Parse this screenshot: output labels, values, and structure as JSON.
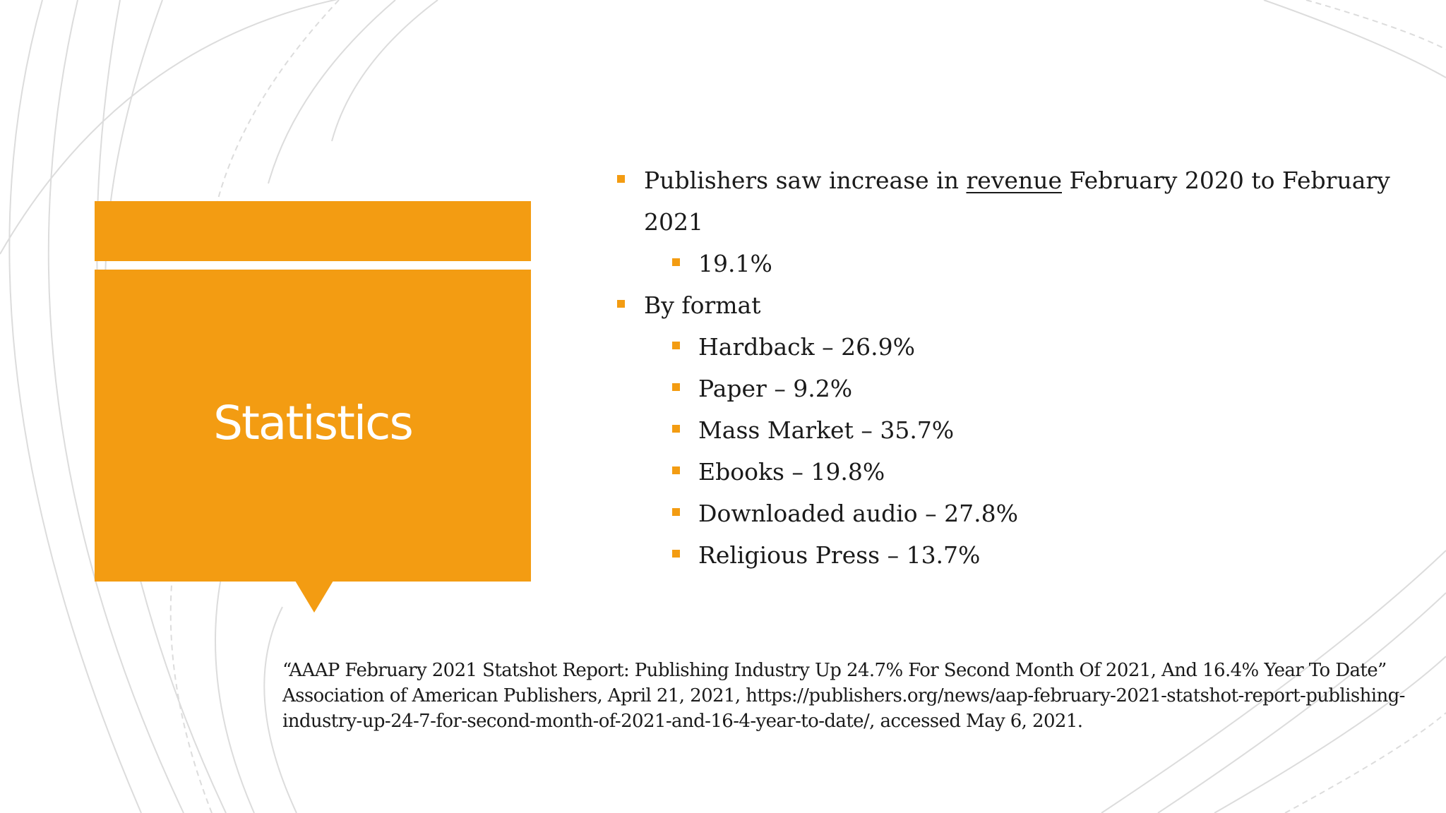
{
  "colors": {
    "accent": "#F39C12",
    "text": "#1a1a1a",
    "lines": "#d9d9d9"
  },
  "title": "Statistics",
  "bullets": {
    "revenue_pre": "Publishers saw increase in ",
    "revenue_link": "revenue",
    "revenue_post": " February 2020 to February 2021",
    "revenue_value": "19.1%",
    "by_format": "By format",
    "formats": [
      "Hardback – 26.9%",
      "Paper – 9.2%",
      "Mass Market – 35.7%",
      "Ebooks – 19.8%",
      "Downloaded audio – 27.8%",
      "Religious Press – 13.7%"
    ]
  },
  "citation": "“AAAP February 2021 Statshot Report: Publishing Industry Up 24.7% For Second Month Of 2021, And 16.4% Year To Date” Association of American Publishers, April 21, 2021, https://publishers.org/news/aap-february-2021-statshot-report-publishing-industry-up-24-7-for-second-month-of-2021-and-16-4-year-to-date/, accessed May 6, 2021."
}
